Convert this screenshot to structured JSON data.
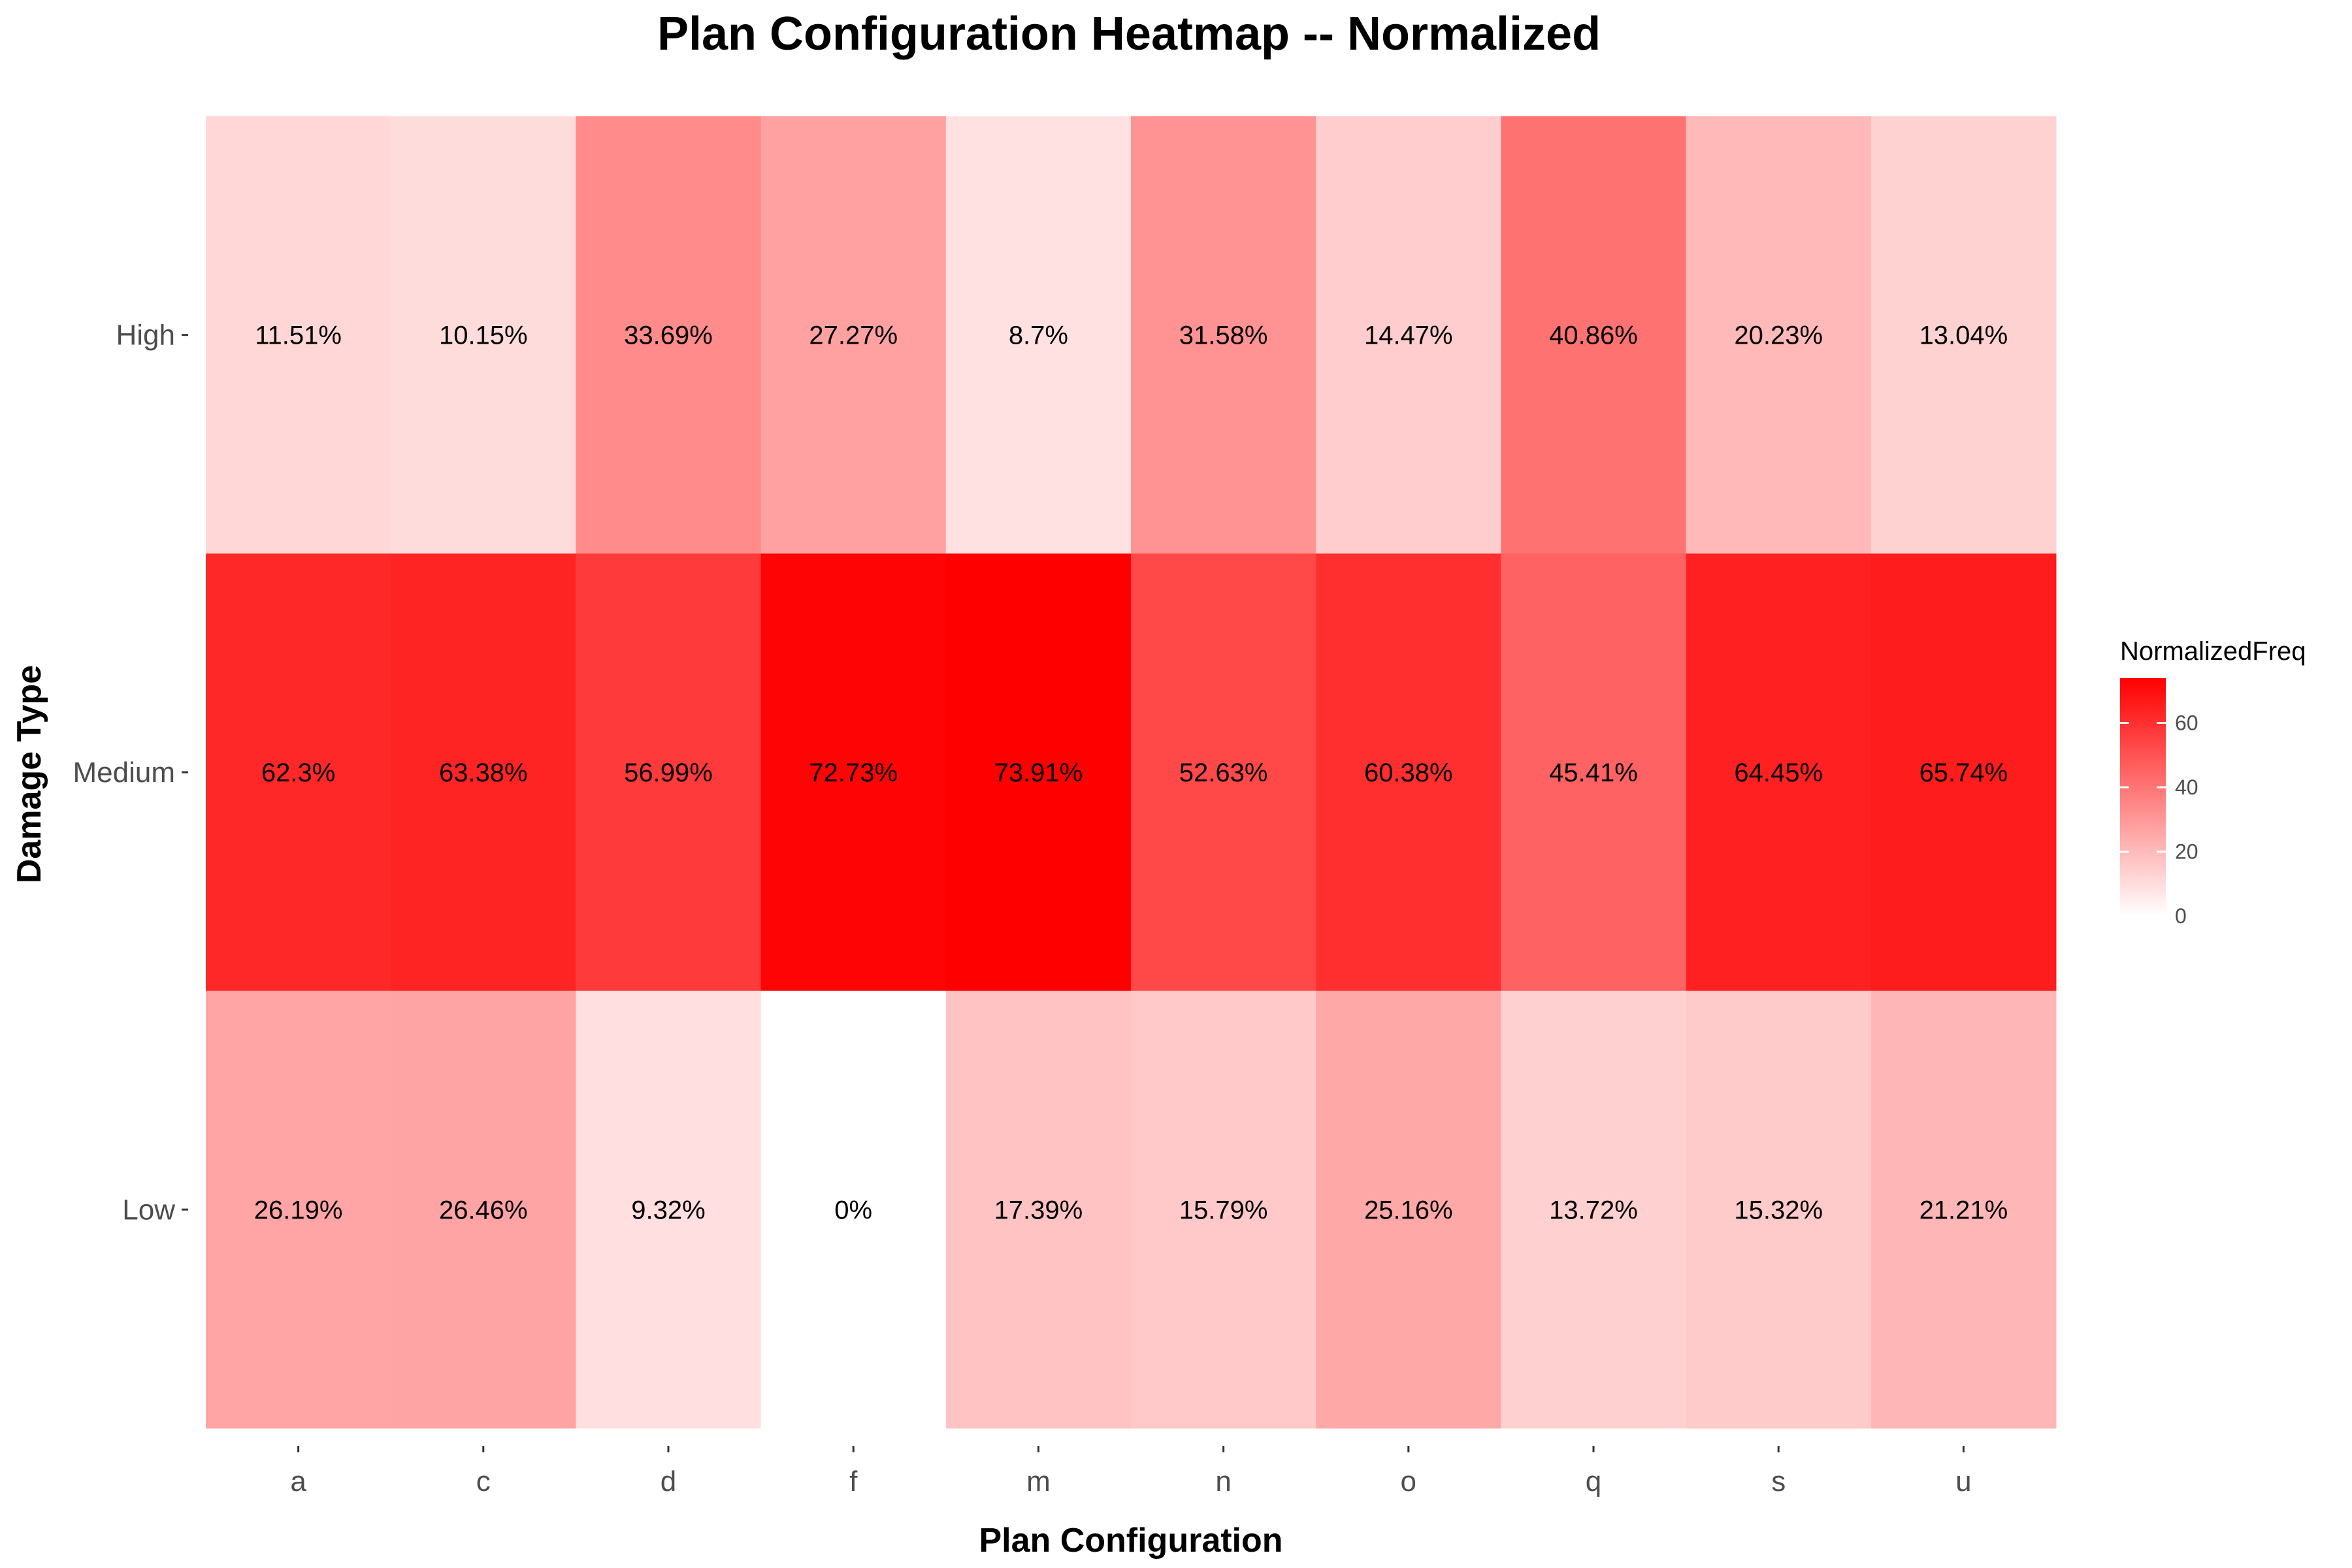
{
  "chart_data": {
    "type": "heatmap",
    "title": "Plan Configuration Heatmap -- Normalized",
    "xlabel": "Plan Configuration",
    "ylabel": "Damage Type",
    "x_categories": [
      "a",
      "c",
      "d",
      "f",
      "m",
      "n",
      "o",
      "q",
      "s",
      "u"
    ],
    "y_categories": [
      "High",
      "Medium",
      "Low"
    ],
    "values": [
      [
        11.51,
        10.15,
        33.69,
        27.27,
        8.7,
        31.58,
        14.47,
        40.86,
        20.23,
        13.04
      ],
      [
        62.3,
        63.38,
        56.99,
        72.73,
        73.91,
        52.63,
        60.38,
        45.41,
        64.45,
        65.74
      ],
      [
        26.19,
        26.46,
        9.32,
        0,
        17.39,
        15.79,
        25.16,
        13.72,
        15.32,
        21.21
      ]
    ],
    "labels": [
      [
        "11.51%",
        "10.15%",
        "33.69%",
        "27.27%",
        "8.7%",
        "31.58%",
        "14.47%",
        "40.86%",
        "20.23%",
        "13.04%"
      ],
      [
        "62.3%",
        "63.38%",
        "56.99%",
        "72.73%",
        "73.91%",
        "52.63%",
        "60.38%",
        "45.41%",
        "64.45%",
        "65.74%"
      ],
      [
        "26.19%",
        "26.46%",
        "9.32%",
        "0%",
        "17.39%",
        "15.79%",
        "25.16%",
        "13.72%",
        "15.32%",
        "21.21%"
      ]
    ],
    "color_scale": {
      "low": "#ffffff",
      "high": "#ff0000",
      "min": 0,
      "max": 73.91
    },
    "legend": {
      "title": "NormalizedFreq",
      "ticks": [
        0,
        20,
        40,
        60
      ],
      "placement": "right"
    },
    "grid": false
  }
}
